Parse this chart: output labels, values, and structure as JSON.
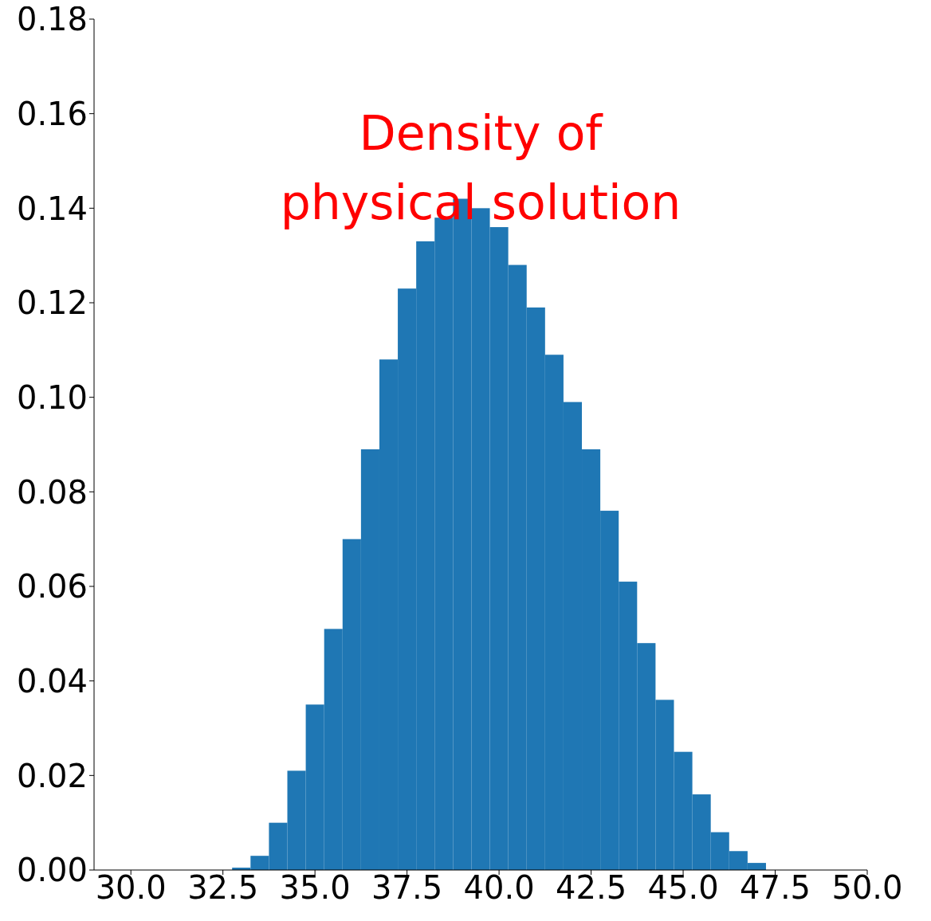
{
  "chart_data": {
    "type": "histogram",
    "bins": [
      32.75,
      33.25,
      33.75,
      34.25,
      34.75,
      35.25,
      35.75,
      36.25,
      36.75,
      37.25,
      37.75,
      38.25,
      38.75,
      39.25,
      39.75,
      40.25,
      40.75,
      41.25,
      41.75,
      42.25,
      42.75,
      43.25,
      43.75,
      44.25,
      44.75,
      45.25,
      45.75,
      46.25,
      46.75,
      47.25
    ],
    "values": [
      0.0005,
      0.003,
      0.01,
      0.021,
      0.035,
      0.051,
      0.07,
      0.089,
      0.108,
      0.123,
      0.133,
      0.138,
      0.142,
      0.14,
      0.136,
      0.128,
      0.119,
      0.109,
      0.099,
      0.089,
      0.076,
      0.061,
      0.048,
      0.036,
      0.025,
      0.016,
      0.008,
      0.004,
      0.0015
    ],
    "color": "#1f77b4",
    "xlim": [
      29,
      50
    ],
    "xticks": [
      {
        "value": 30,
        "label": "30.0"
      },
      {
        "value": 32.5,
        "label": "32.5"
      },
      {
        "value": 35,
        "label": "35.0"
      },
      {
        "value": 37.5,
        "label": "37.5"
      },
      {
        "value": 40,
        "label": "40.0"
      },
      {
        "value": 42.5,
        "label": "42.5"
      },
      {
        "value": 45,
        "label": "45.0"
      },
      {
        "value": 47.5,
        "label": "47.5"
      },
      {
        "value": 50,
        "label": "50.0"
      }
    ],
    "ylim": [
      0,
      0.18
    ],
    "yticks": [
      {
        "value": 0,
        "label": "0.00"
      },
      {
        "value": 0.02,
        "label": "0.02"
      },
      {
        "value": 0.04,
        "label": "0.04"
      },
      {
        "value": 0.06,
        "label": "0.06"
      },
      {
        "value": 0.08,
        "label": "0.08"
      },
      {
        "value": 0.1,
        "label": "0.10"
      },
      {
        "value": 0.12,
        "label": "0.12"
      },
      {
        "value": 0.14,
        "label": "0.14"
      },
      {
        "value": 0.16,
        "label": "0.16"
      },
      {
        "value": 0.18,
        "label": "0.18"
      }
    ],
    "annotations": [
      "Density of\nphysical solution"
    ],
    "grid": false
  }
}
